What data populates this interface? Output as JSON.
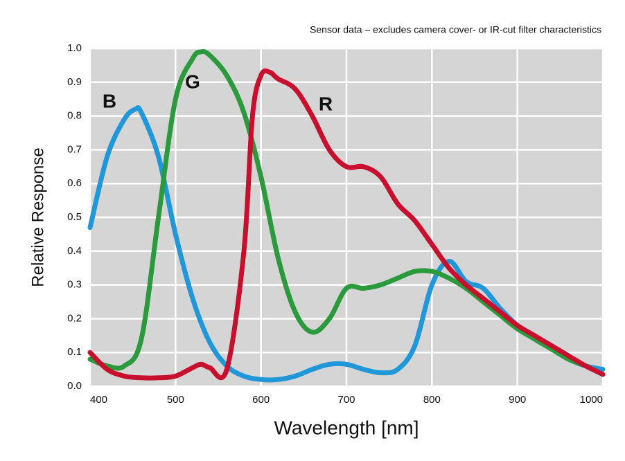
{
  "chart_data": {
    "type": "line",
    "subtitle": "Sensor data – excludes camera cover- or IR-cut filter characteristics",
    "x_label": "Wavelength [nm]",
    "y_label": "Relative Response",
    "xlim": [
      400,
      1000
    ],
    "ylim": [
      0,
      1
    ],
    "xticks": [
      400,
      500,
      600,
      700,
      800,
      900,
      1000
    ],
    "yticks": [
      {
        "value": 0,
        "label": "0.0"
      },
      0.1,
      0.2,
      0.3,
      0.4,
      0.5,
      0.6,
      0.7,
      0.8,
      0.9,
      {
        "value": 1,
        "label": "1.0"
      }
    ],
    "grid": true,
    "series": [
      {
        "name": "B",
        "color": "#1f97d9",
        "x": [
          400,
          420,
          440,
          453,
          460,
          480,
          500,
          520,
          540,
          560,
          580,
          600,
          620,
          640,
          660,
          680,
          700,
          720,
          740,
          760,
          780,
          800,
          820,
          840,
          860,
          880,
          900,
          920,
          940,
          960,
          980,
          1000
        ],
        "values": [
          0.47,
          0.68,
          0.79,
          0.82,
          0.81,
          0.68,
          0.45,
          0.26,
          0.13,
          0.06,
          0.03,
          0.02,
          0.02,
          0.03,
          0.05,
          0.065,
          0.065,
          0.05,
          0.04,
          0.05,
          0.12,
          0.3,
          0.37,
          0.31,
          0.29,
          0.23,
          0.18,
          0.14,
          0.11,
          0.08,
          0.06,
          0.05
        ]
      },
      {
        "name": "G",
        "color": "#2a9a3c",
        "x": [
          400,
          420,
          440,
          460,
          480,
          500,
          520,
          530,
          540,
          560,
          580,
          600,
          620,
          640,
          660,
          680,
          700,
          720,
          740,
          760,
          780,
          800,
          820,
          840,
          860,
          880,
          900,
          920,
          940,
          960,
          980,
          1000
        ],
        "values": [
          0.08,
          0.06,
          0.06,
          0.14,
          0.5,
          0.85,
          0.97,
          0.99,
          0.98,
          0.92,
          0.81,
          0.62,
          0.38,
          0.22,
          0.16,
          0.2,
          0.29,
          0.29,
          0.3,
          0.32,
          0.34,
          0.34,
          0.32,
          0.29,
          0.25,
          0.21,
          0.17,
          0.14,
          0.11,
          0.08,
          0.06,
          0.035
        ]
      },
      {
        "name": "R",
        "color": "#c8102e",
        "x": [
          400,
          420,
          440,
          460,
          480,
          500,
          520,
          530,
          540,
          560,
          580,
          590,
          600,
          610,
          620,
          640,
          660,
          680,
          700,
          720,
          740,
          760,
          780,
          800,
          820,
          840,
          860,
          880,
          900,
          920,
          940,
          960,
          980,
          1000
        ],
        "values": [
          0.1,
          0.05,
          0.03,
          0.025,
          0.025,
          0.03,
          0.055,
          0.065,
          0.055,
          0.05,
          0.4,
          0.8,
          0.92,
          0.93,
          0.91,
          0.88,
          0.8,
          0.7,
          0.65,
          0.65,
          0.62,
          0.54,
          0.49,
          0.42,
          0.35,
          0.3,
          0.26,
          0.22,
          0.18,
          0.15,
          0.12,
          0.09,
          0.06,
          0.035
        ]
      }
    ]
  }
}
